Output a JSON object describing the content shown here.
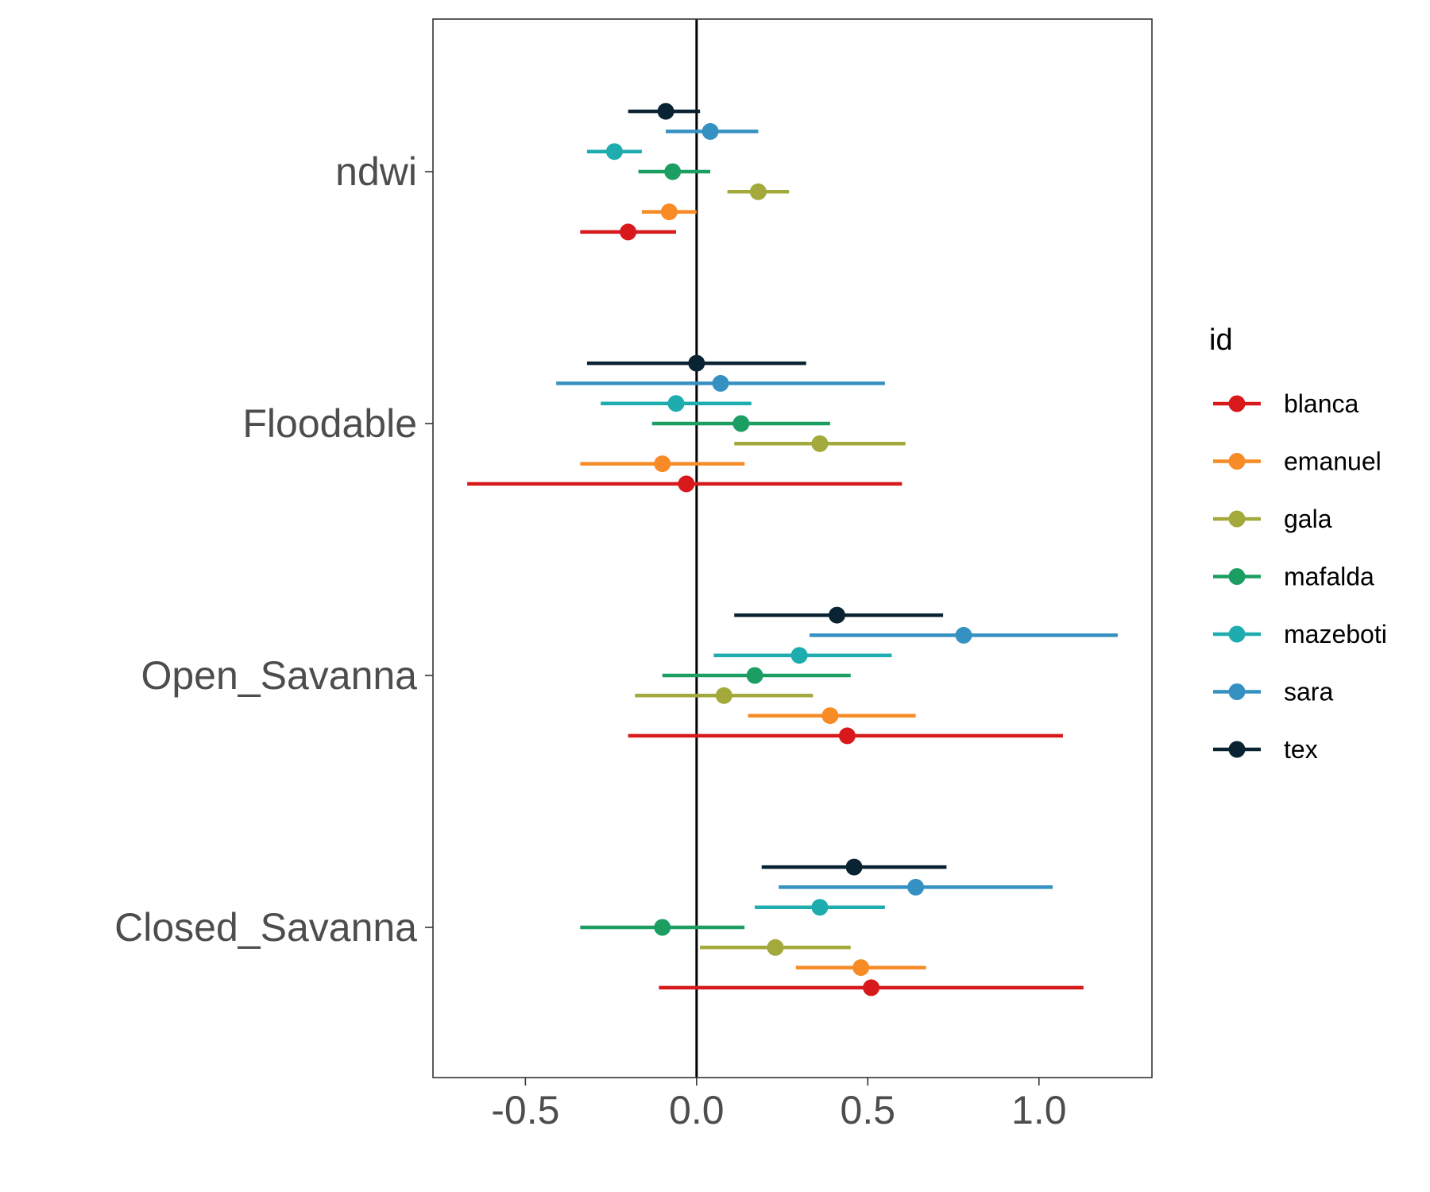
{
  "chart_data": {
    "type": "scatter",
    "title": "",
    "xlabel": "",
    "ylabel": "",
    "xlim": [
      -0.77,
      1.33
    ],
    "x_ticks": [
      -0.5,
      0.0,
      0.5,
      1.0
    ],
    "x_tick_labels": [
      "-0.5",
      "0.0",
      "0.5",
      "1.0"
    ],
    "reference_line_x": 0,
    "grid": false,
    "categories": [
      "ndwi",
      "Floodable",
      "Open_Savanna",
      "Closed_Savanna"
    ],
    "legend": {
      "title": "id",
      "position": "right"
    },
    "series": [
      {
        "name": "blanca",
        "color": "#d7191c",
        "estimate": [
          -0.2,
          -0.03,
          0.44,
          0.51
        ],
        "lower": [
          -0.34,
          -0.67,
          -0.2,
          -0.11
        ],
        "upper": [
          -0.06,
          0.6,
          1.07,
          1.13
        ]
      },
      {
        "name": "emanuel",
        "color": "#f78b26",
        "estimate": [
          -0.08,
          -0.1,
          0.39,
          0.48
        ],
        "lower": [
          -0.16,
          -0.34,
          0.15,
          0.29
        ],
        "upper": [
          0.0,
          0.14,
          0.64,
          0.67
        ]
      },
      {
        "name": "gala",
        "color": "#a4a93c",
        "estimate": [
          0.18,
          0.36,
          0.08,
          0.23
        ],
        "lower": [
          0.09,
          0.11,
          -0.18,
          0.01
        ],
        "upper": [
          0.27,
          0.61,
          0.34,
          0.45
        ]
      },
      {
        "name": "mafalda",
        "color": "#1c9e62",
        "estimate": [
          -0.07,
          0.13,
          0.17,
          -0.1
        ],
        "lower": [
          -0.17,
          -0.13,
          -0.1,
          -0.34
        ],
        "upper": [
          0.04,
          0.39,
          0.45,
          0.14
        ]
      },
      {
        "name": "mazeboti",
        "color": "#1eacaf",
        "estimate": [
          -0.24,
          -0.06,
          0.3,
          0.36
        ],
        "lower": [
          -0.32,
          -0.28,
          0.05,
          0.17
        ],
        "upper": [
          -0.16,
          0.16,
          0.57,
          0.55
        ]
      },
      {
        "name": "sara",
        "color": "#3591c2",
        "estimate": [
          0.04,
          0.07,
          0.78,
          0.64
        ],
        "lower": [
          -0.09,
          -0.41,
          0.33,
          0.24
        ],
        "upper": [
          0.18,
          0.55,
          1.23,
          1.04
        ]
      },
      {
        "name": "tex",
        "color": "#0a2332",
        "estimate": [
          -0.09,
          0.0,
          0.41,
          0.46
        ],
        "lower": [
          -0.2,
          -0.32,
          0.11,
          0.19
        ],
        "upper": [
          0.01,
          0.32,
          0.72,
          0.73
        ]
      }
    ]
  }
}
